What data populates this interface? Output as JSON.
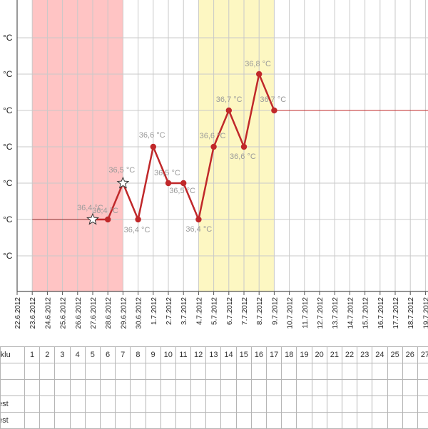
{
  "chart_data": {
    "type": "line",
    "title": "",
    "xlabel": "",
    "ylabel": "",
    "y_tick_labels": [
      "°C",
      "°C",
      "°C",
      "°C",
      "°C",
      "°C",
      "°C"
    ],
    "y_tick_values": [
      36.9,
      36.8,
      36.7,
      36.6,
      36.5,
      36.4,
      36.3
    ],
    "ylim": [
      36.2,
      36.9
    ],
    "x": [
      "22.6.2012",
      "23.6.2012",
      "24.6.2012",
      "25.6.2012",
      "26.6.2012",
      "27.6.2012",
      "28.6.2012",
      "29.6.2012",
      "30.6.2012",
      "1.7.2012",
      "2.7.2012",
      "3.7.2012",
      "4.7.2012",
      "5.7.2012",
      "6.7.2012",
      "7.7.2012",
      "8.7.2012",
      "9.7.2012",
      "10.7.2012",
      "11.7.2012",
      "12.7.2012",
      "13.7.2012",
      "14.7.2012",
      "15.7.2012",
      "16.7.2012",
      "17.7.2012",
      "18.7.2012",
      "19.7.2012"
    ],
    "leading_line": {
      "from": "23.6.2012",
      "to": "27.6.2012",
      "value": 36.4
    },
    "trailing_line": {
      "from": "9.7.2012",
      "to": "19.7.2012",
      "value": 36.7
    },
    "series": [
      {
        "color": "#c0282a",
        "points": [
          {
            "x": "27.6.2012",
            "y": 36.4,
            "label": "36,4 °C",
            "marker": "star"
          },
          {
            "x": "28.6.2012",
            "y": 36.4,
            "label": "36,4 °C",
            "marker": "dot"
          },
          {
            "x": "29.6.2012",
            "y": 36.5,
            "label": "36,5 °C",
            "marker": "star"
          },
          {
            "x": "30.6.2012",
            "y": 36.4,
            "label": "36,4 °C",
            "marker": "dot"
          },
          {
            "x": "1.7.2012",
            "y": 36.6,
            "label": "36,6 °C",
            "marker": "dot"
          },
          {
            "x": "2.7.2012",
            "y": 36.5,
            "label": "36,5 °C",
            "marker": "dot"
          },
          {
            "x": "3.7.2012",
            "y": 36.5,
            "label": "36,5 °C",
            "marker": "dot"
          },
          {
            "x": "4.7.2012",
            "y": 36.4,
            "label": "36,4 °C",
            "marker": "dot"
          },
          {
            "x": "5.7.2012",
            "y": 36.6,
            "label": "36,6 °C",
            "marker": "dot"
          },
          {
            "x": "6.7.2012",
            "y": 36.7,
            "label": "36,7 °C",
            "marker": "dot"
          },
          {
            "x": "7.7.2012",
            "y": 36.6,
            "label": "36,6 °C",
            "marker": "dot"
          },
          {
            "x": "8.7.2012",
            "y": 36.8,
            "label": "36,8 °C",
            "marker": "dot"
          },
          {
            "x": "9.7.2012",
            "y": 36.7,
            "label": "36,7 °C",
            "marker": "dot"
          }
        ]
      }
    ],
    "bands": [
      {
        "from": "23.6.2012",
        "to": "29.6.2012",
        "color": "#ffc4c4"
      },
      {
        "from": "4.7.2012",
        "to": "9.7.2012",
        "color": "#fdf7c2"
      }
    ],
    "grid": true
  },
  "table": {
    "rows": [
      {
        "label": "rklu",
        "cells": [
          "1",
          "2",
          "3",
          "4",
          "5",
          "6",
          "7",
          "8",
          "9",
          "10",
          "11",
          "12",
          "13",
          "14",
          "15",
          "16",
          "17",
          "18",
          "19",
          "20",
          "21",
          "22",
          "23",
          "24",
          "25",
          "26",
          "27"
        ]
      },
      {
        "label": "",
        "cells": []
      },
      {
        "label": "",
        "cells": []
      },
      {
        "label": "est",
        "cells": []
      },
      {
        "label": "est",
        "cells": []
      }
    ]
  }
}
